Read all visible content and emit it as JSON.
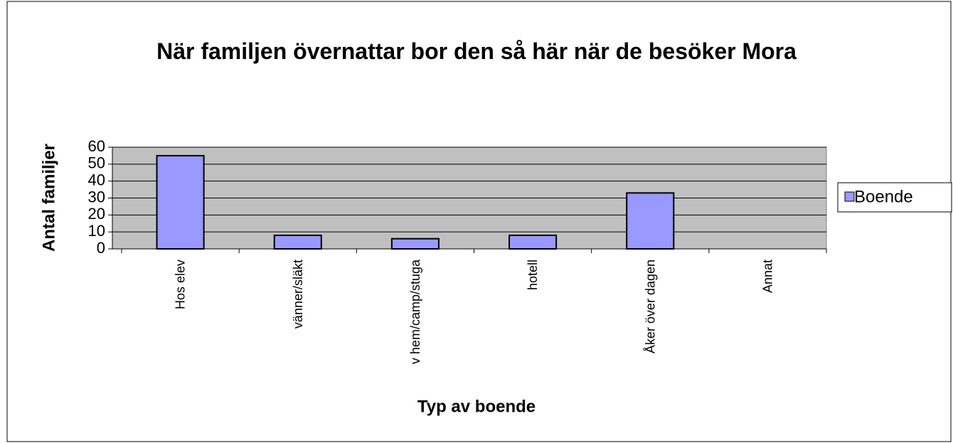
{
  "chart_data": {
    "type": "bar",
    "title": "När familjen övernattar bor den så här när de besöker Mora",
    "x_label": "Typ av boende",
    "y_label": "Antal familjer",
    "categories": [
      "Hos elev",
      "vänner/släkt",
      "v hem/camp/stuga",
      "hotell",
      "Åker över dagen",
      "Annat"
    ],
    "series": [
      {
        "name": "Boende",
        "color": "#9999ff",
        "values": [
          55,
          8,
          6,
          8,
          33,
          0
        ]
      }
    ],
    "ylim": [
      0,
      60
    ],
    "yticks": [
      0,
      10,
      20,
      30,
      40,
      50,
      60
    ],
    "grid": true,
    "legend": "right"
  }
}
